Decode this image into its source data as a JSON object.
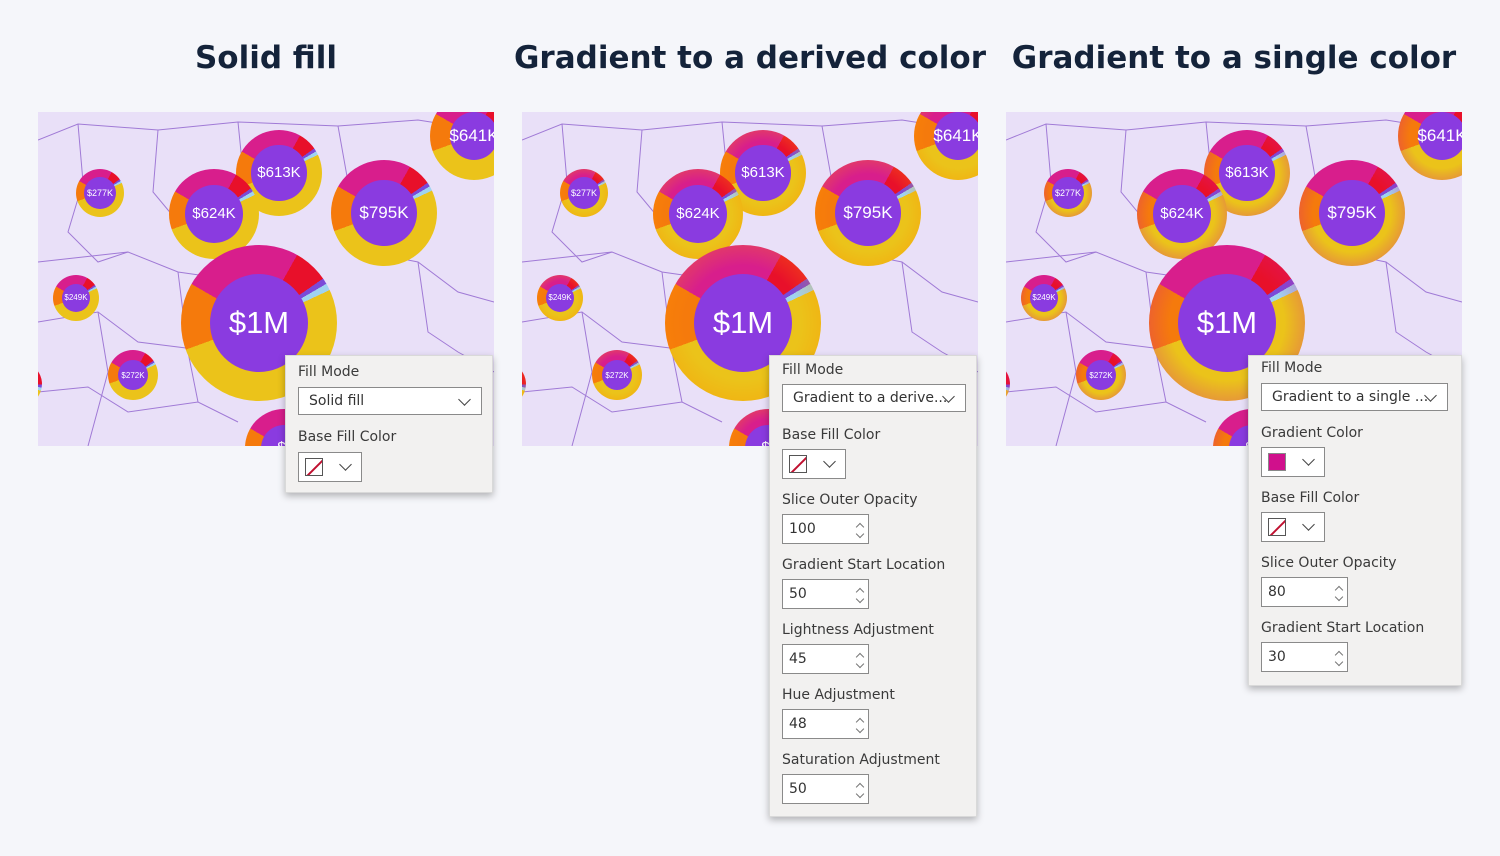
{
  "sections": [
    {
      "title": "Solid fill",
      "fill_style": "solid",
      "panel": {
        "fill_mode_label": "Fill Mode",
        "fill_mode_value": "Solid fill",
        "base_fill_color_label": "Base Fill Color"
      }
    },
    {
      "title": "Gradient to a derived color",
      "fill_style": "derived",
      "panel": {
        "fill_mode_label": "Fill Mode",
        "fill_mode_value": "Gradient to a derive...",
        "base_fill_color_label": "Base Fill Color",
        "slice_outer_opacity_label": "Slice Outer Opacity",
        "slice_outer_opacity_value": "100",
        "gradient_start_location_label": "Gradient Start Location",
        "gradient_start_location_value": "50",
        "lightness_adjustment_label": "Lightness Adjustment",
        "lightness_adjustment_value": "45",
        "hue_adjustment_label": "Hue Adjustment",
        "hue_adjustment_value": "48",
        "saturation_adjustment_label": "Saturation Adjustment",
        "saturation_adjustment_value": "50"
      }
    },
    {
      "title": "Gradient to a single color",
      "fill_style": "single",
      "panel": {
        "fill_mode_label": "Fill Mode",
        "fill_mode_value": "Gradient to a single ...",
        "gradient_color_label": "Gradient Color",
        "gradient_color": "#d0108c",
        "base_fill_color_label": "Base Fill Color",
        "slice_outer_opacity_label": "Slice Outer Opacity",
        "slice_outer_opacity_value": "80",
        "gradient_start_location_label": "Gradient Start Location",
        "gradient_start_location_value": "30"
      }
    }
  ],
  "bubble_labels": {
    "b641": "$641K",
    "b613": "$613K",
    "b277": "$277K",
    "b624": "$624K",
    "b795": "$795K",
    "b249": "$249K",
    "b1m": "$1M",
    "b272": "$272K",
    "bpartial": "$("
  },
  "colors": {
    "map_background": "#e9e0f8",
    "map_border": "#a07ad6",
    "bubble_core": "#8a3be0",
    "ring_yellow": "#ebc31a",
    "ring_orange": "#f57a0c",
    "ring_red": "#e8102a",
    "ring_magenta": "#d81e8c",
    "title_color": "#14233a"
  }
}
